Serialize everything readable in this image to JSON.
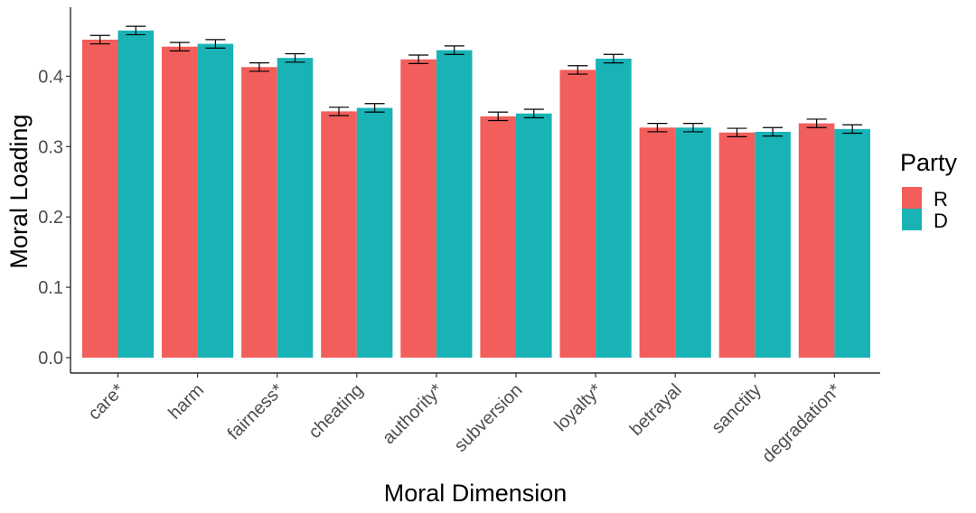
{
  "chart_data": {
    "type": "bar",
    "title": "",
    "xlabel": "Moral Dimension",
    "ylabel": "Moral Loading",
    "ylim": [
      0,
      0.48
    ],
    "yticks": [
      "0.0",
      "0.1",
      "0.2",
      "0.3",
      "0.4"
    ],
    "grid": false,
    "legend": {
      "title": "Party",
      "placement": "right"
    },
    "categories": [
      "care*",
      "harm",
      "fairness*",
      "cheating",
      "authority*",
      "subversion",
      "loyalty*",
      "betrayal",
      "sanctity",
      "degradation*"
    ],
    "series": [
      {
        "name": "R",
        "color": "#F25E5B",
        "values": [
          0.452,
          0.442,
          0.413,
          0.35,
          0.424,
          0.343,
          0.409,
          0.327,
          0.32,
          0.333
        ],
        "error": [
          0.006,
          0.006,
          0.006,
          0.006,
          0.006,
          0.006,
          0.006,
          0.006,
          0.006,
          0.006
        ]
      },
      {
        "name": "D",
        "color": "#19B3B6",
        "values": [
          0.465,
          0.446,
          0.426,
          0.355,
          0.437,
          0.347,
          0.425,
          0.327,
          0.321,
          0.325
        ],
        "error": [
          0.006,
          0.006,
          0.006,
          0.006,
          0.006,
          0.006,
          0.006,
          0.006,
          0.006,
          0.006
        ]
      }
    ]
  }
}
